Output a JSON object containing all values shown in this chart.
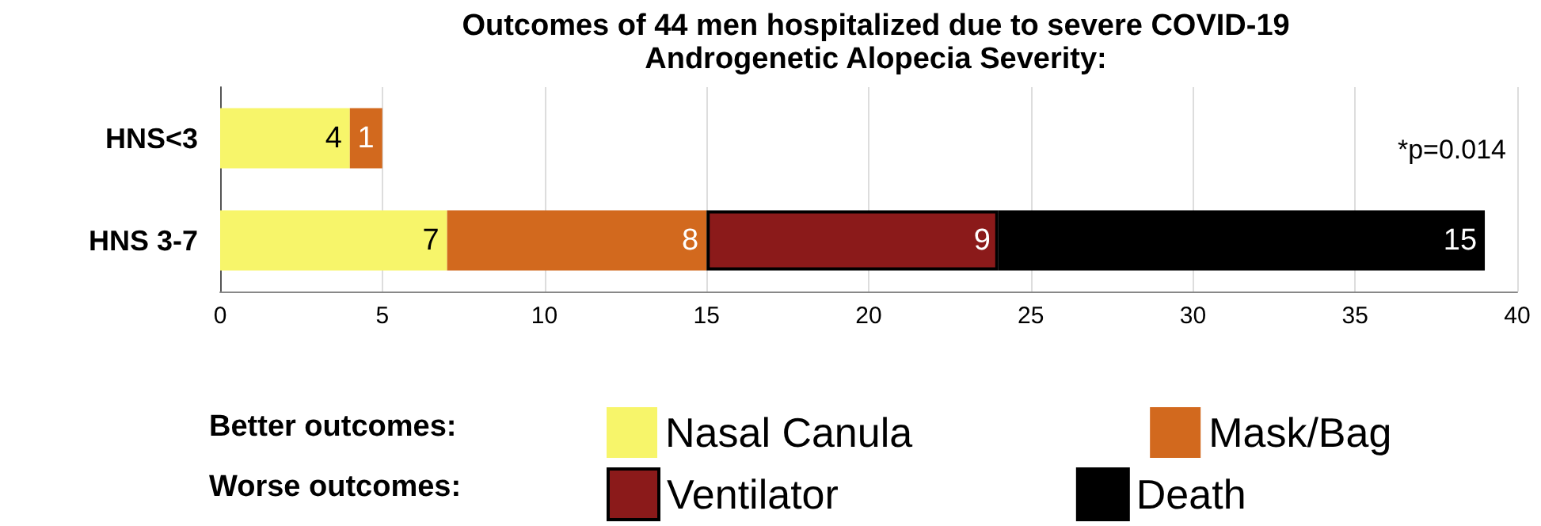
{
  "chart_data": {
    "type": "bar",
    "orientation": "horizontal",
    "stacked": true,
    "title": "Outcomes of 44 men hospitalized due to severe COVID-19",
    "subtitle": "Androgenetic Alopecia Severity:",
    "categories": [
      "HNS<3",
      "HNS 3-7"
    ],
    "series": [
      {
        "name": "Nasal Canula",
        "color": "#f7f56a",
        "values": [
          4,
          7
        ]
      },
      {
        "name": "Mask/Bag",
        "color": "#d2691e",
        "values": [
          1,
          8
        ]
      },
      {
        "name": "Ventilator",
        "color": "#8b1a1a",
        "values": [
          null,
          9
        ]
      },
      {
        "name": "Death",
        "color": "#000000",
        "values": [
          null,
          15
        ]
      }
    ],
    "xlim": [
      0,
      40
    ],
    "xticks": [
      0,
      5,
      10,
      15,
      20,
      25,
      30,
      35,
      40
    ],
    "grid": "x",
    "data_labels": true,
    "legend": "bottom",
    "annotations": [
      "*p=0.014",
      "Better outcomes:",
      "Worse outcomes:"
    ]
  }
}
